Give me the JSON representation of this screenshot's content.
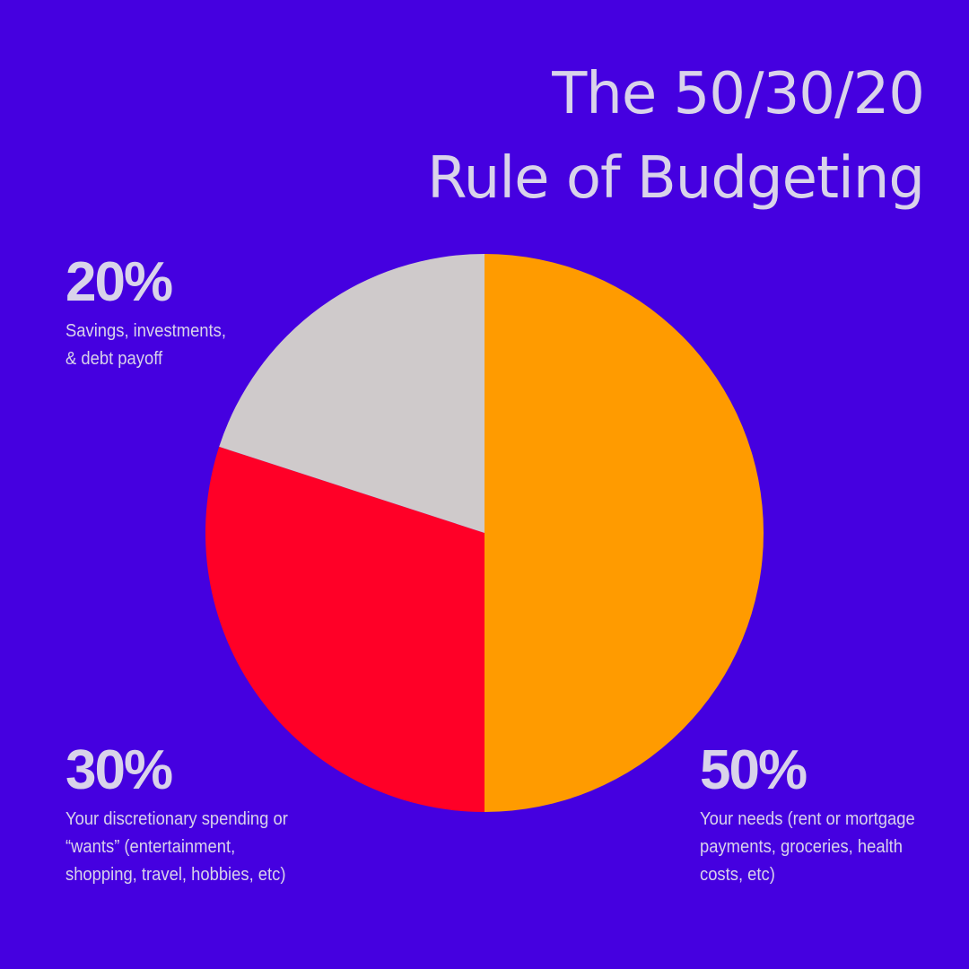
{
  "title": {
    "line1": "The 50/30/20",
    "line2": "Rule of Budgeting"
  },
  "chart_data": {
    "type": "pie",
    "start_angle": "12 o'clock",
    "direction": "clockwise",
    "slices": [
      {
        "value": 50,
        "label": "50%",
        "description": "Your needs (rent or mortgage payments, groceries, health costs, etc)",
        "color": "#FF9B00"
      },
      {
        "value": 30,
        "label": "30%",
        "description": "Your discretionary spending or “wants” (entertainment, shopping, travel, hobbies, etc)",
        "color": "#FF0027"
      },
      {
        "value": 20,
        "label": "20%",
        "description": "Savings, investments, & debt payoff",
        "color": "#CFCACB"
      }
    ]
  },
  "labels": {
    "savings": {
      "pct": "20%",
      "desc": "Savings, investments, & debt payoff"
    },
    "wants": {
      "pct": "30%",
      "desc": "Your discretionary spending or “wants” (entertainment, shopping, travel, hobbies, etc)"
    },
    "needs": {
      "pct": "50%",
      "desc": "Your needs (rent or mortgage payments, groceries, health costs, etc)"
    }
  },
  "colors": {
    "background": "#4500E0",
    "text": "#D9D3EA"
  }
}
